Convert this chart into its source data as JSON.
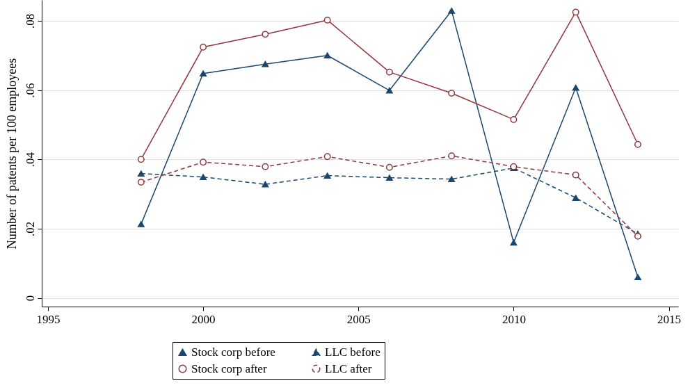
{
  "chart_data": {
    "type": "line",
    "ylabel": "Number of patents per 100 employees",
    "x": [
      1998,
      2000,
      2002,
      2004,
      2006,
      2008,
      2010,
      2012,
      2014
    ],
    "xlim": [
      1994.8,
      2015.3
    ],
    "xticks": [
      1995,
      2000,
      2005,
      2010,
      2015
    ],
    "ylim": [
      -0.0025,
      0.086
    ],
    "yticks": [
      0,
      {
        "value": 0.02,
        "label": ".02"
      },
      {
        "value": 0.04,
        "label": ".04"
      },
      {
        "value": 0.06,
        "label": ".06"
      },
      {
        "value": 0.08,
        "label": ".08"
      }
    ],
    "grid": "y",
    "legend": "bottom",
    "series": [
      {
        "name": "Stock corp before",
        "color": "#1a476f",
        "marker": "triangle",
        "line_style": "solid",
        "values": [
          0.0213,
          0.0648,
          0.0675,
          0.07,
          0.0599,
          0.0829,
          0.016,
          0.0607,
          0.006
        ]
      },
      {
        "name": "Stock corp after",
        "color": "#90353b",
        "marker": "circle",
        "line_style": "solid",
        "values": [
          0.04,
          0.0724,
          0.0761,
          0.0802,
          0.0652,
          0.0591,
          0.0515,
          0.0825,
          0.0443
        ]
      },
      {
        "name": "LLC before",
        "color": "#1a476f",
        "marker": "triangle",
        "line_style": "dashed",
        "values": [
          0.0359,
          0.0349,
          0.0328,
          0.0353,
          0.0347,
          0.0343,
          0.0375,
          0.0289,
          0.0185
        ]
      },
      {
        "name": "LLC after",
        "color": "#90353b",
        "marker": "circle",
        "line_style": "dashed",
        "values": [
          0.0334,
          0.0392,
          0.0379,
          0.0408,
          0.0377,
          0.041,
          0.0379,
          0.0355,
          0.0178
        ]
      }
    ]
  }
}
